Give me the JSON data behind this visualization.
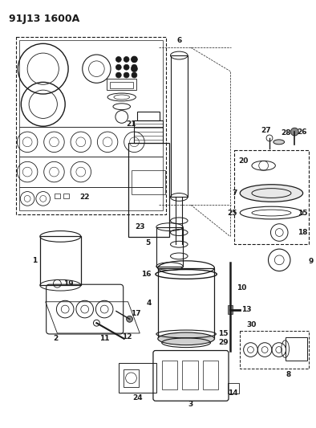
{
  "title": "91J13 1600A",
  "bg_color": "#ffffff",
  "line_color": "#1a1a1a",
  "title_fontsize": 9,
  "label_fontsize": 6.5,
  "figsize": [
    3.94,
    5.33
  ],
  "dpi": 100
}
